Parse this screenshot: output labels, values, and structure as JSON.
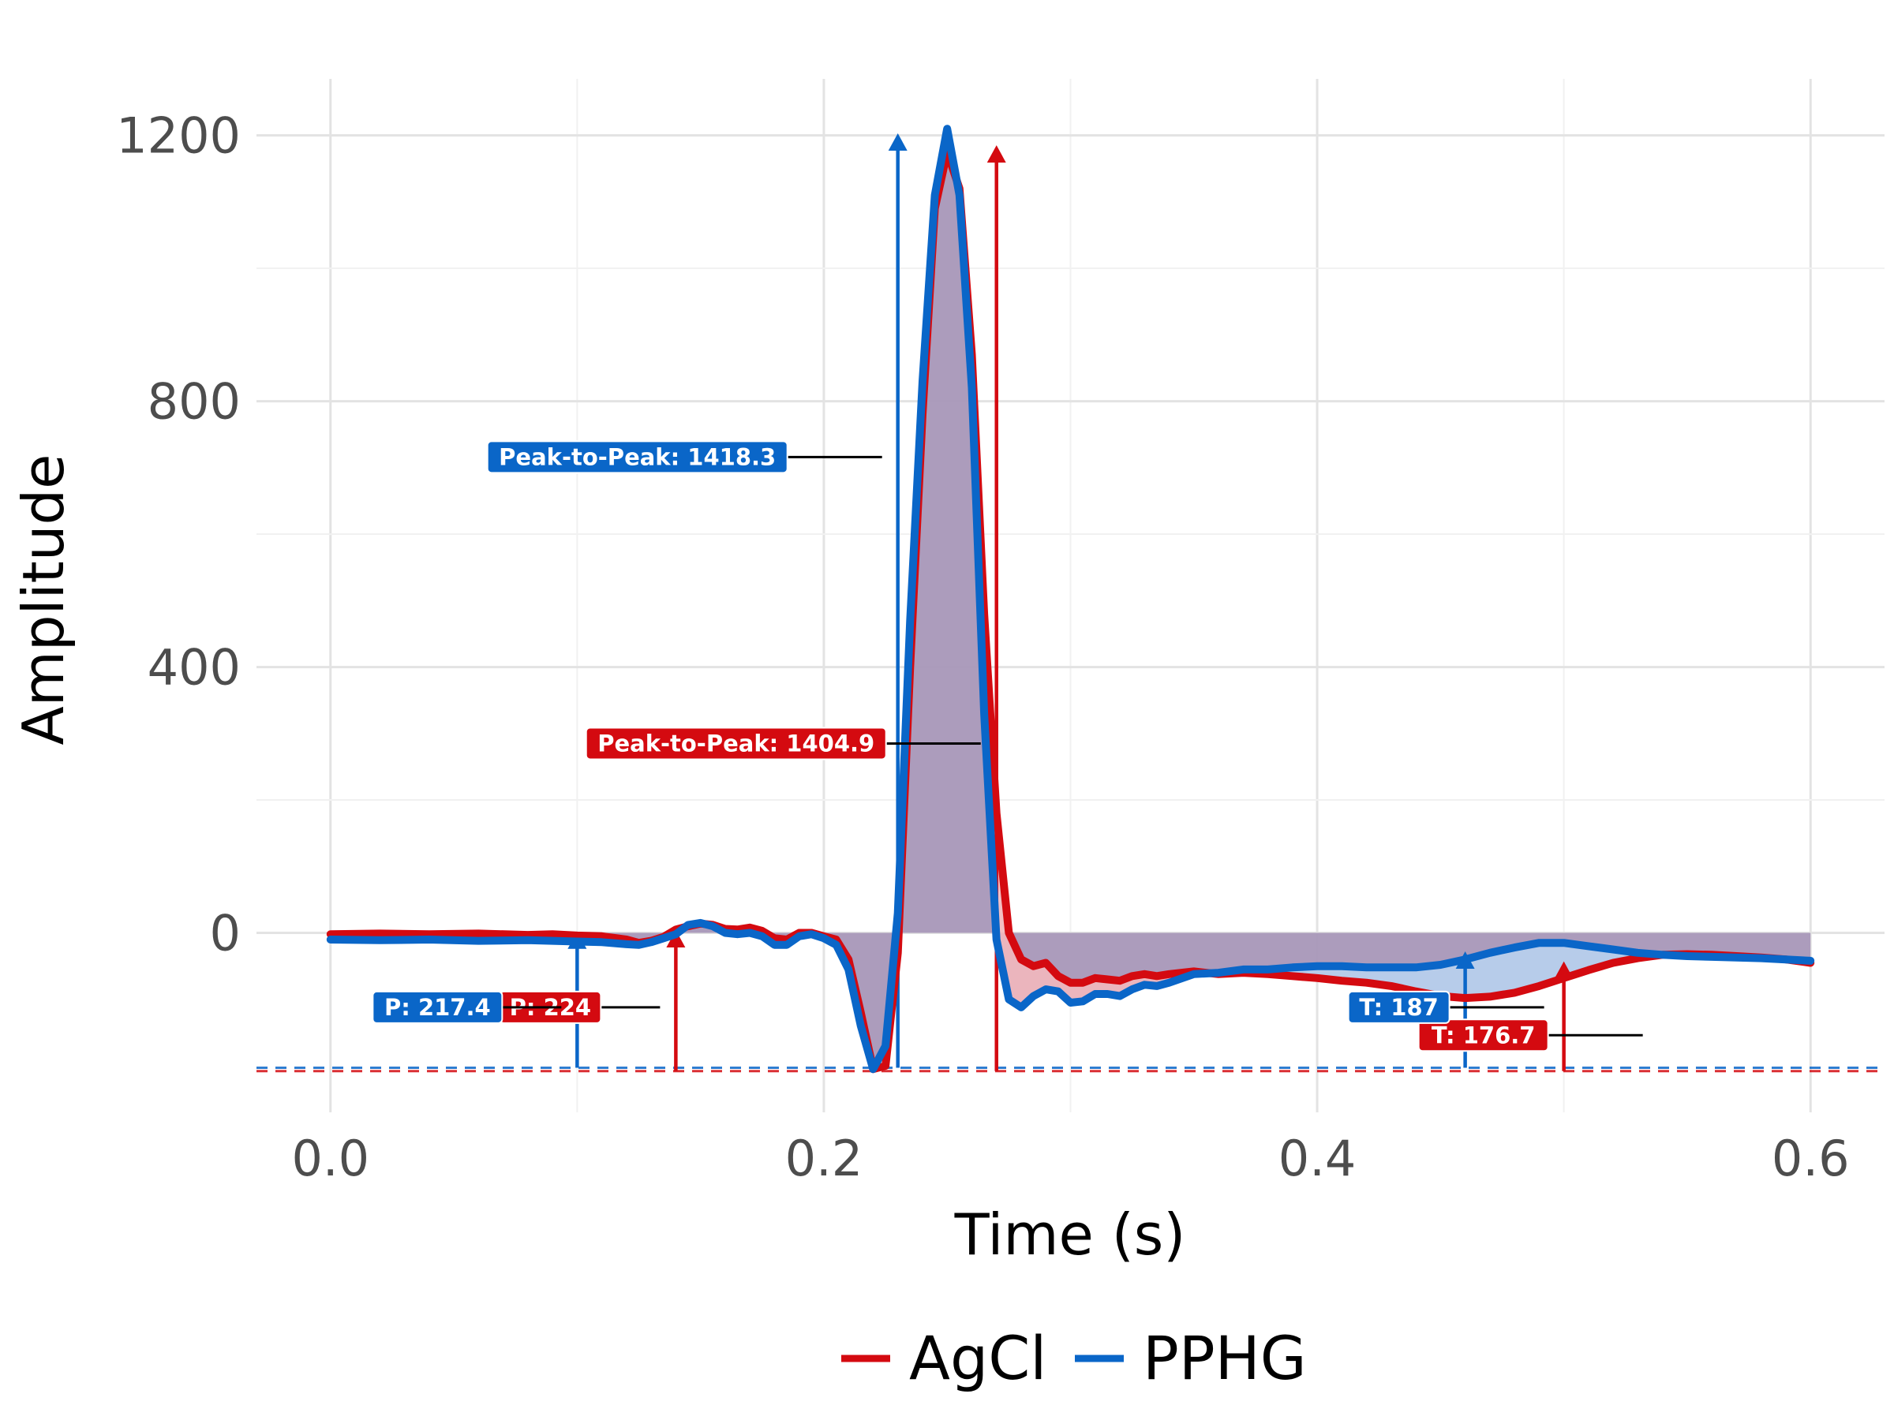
{
  "chart_data": {
    "type": "line",
    "xlabel": "Time (s)",
    "ylabel": "Amplitude",
    "xlim": [
      -0.03,
      0.63
    ],
    "ylim": [
      -270,
      1285
    ],
    "x_ticks": [
      0.0,
      0.2,
      0.4,
      0.6
    ],
    "x_tick_labels": [
      "0.0",
      "0.2",
      "0.4",
      "0.6"
    ],
    "y_ticks": [
      0,
      400,
      800,
      1200
    ],
    "y_tick_labels": [
      "0",
      "400",
      "800",
      "1200"
    ],
    "grid": true,
    "legend_position": "bottom",
    "shared_fill_color": "#a897b8",
    "series": [
      {
        "name": "AgCl",
        "color": "#d40a10",
        "fill_color": "#f2b8bd",
        "baseline": -208,
        "points": [
          [
            0.0,
            -2
          ],
          [
            0.02,
            -1
          ],
          [
            0.04,
            -2
          ],
          [
            0.06,
            -1
          ],
          [
            0.08,
            -3
          ],
          [
            0.09,
            -2
          ],
          [
            0.1,
            -4
          ],
          [
            0.11,
            -5
          ],
          [
            0.12,
            -10
          ],
          [
            0.125,
            -15
          ],
          [
            0.13,
            -12
          ],
          [
            0.135,
            -6
          ],
          [
            0.14,
            5
          ],
          [
            0.145,
            10
          ],
          [
            0.15,
            14
          ],
          [
            0.155,
            12
          ],
          [
            0.16,
            6
          ],
          [
            0.165,
            5
          ],
          [
            0.17,
            8
          ],
          [
            0.175,
            3
          ],
          [
            0.18,
            -8
          ],
          [
            0.185,
            -10
          ],
          [
            0.19,
            0
          ],
          [
            0.195,
            0
          ],
          [
            0.2,
            -5
          ],
          [
            0.205,
            -10
          ],
          [
            0.21,
            -40
          ],
          [
            0.215,
            -120
          ],
          [
            0.22,
            -205
          ],
          [
            0.225,
            -200
          ],
          [
            0.23,
            -30
          ],
          [
            0.235,
            400
          ],
          [
            0.24,
            780
          ],
          [
            0.245,
            1090
          ],
          [
            0.25,
            1175
          ],
          [
            0.255,
            1120
          ],
          [
            0.26,
            870
          ],
          [
            0.265,
            480
          ],
          [
            0.27,
            180
          ],
          [
            0.275,
            0
          ],
          [
            0.28,
            -40
          ],
          [
            0.285,
            -50
          ],
          [
            0.29,
            -45
          ],
          [
            0.295,
            -65
          ],
          [
            0.3,
            -75
          ],
          [
            0.305,
            -75
          ],
          [
            0.31,
            -68
          ],
          [
            0.315,
            -70
          ],
          [
            0.32,
            -72
          ],
          [
            0.325,
            -65
          ],
          [
            0.33,
            -62
          ],
          [
            0.335,
            -65
          ],
          [
            0.34,
            -62
          ],
          [
            0.35,
            -58
          ],
          [
            0.36,
            -62
          ],
          [
            0.37,
            -60
          ],
          [
            0.38,
            -62
          ],
          [
            0.39,
            -65
          ],
          [
            0.4,
            -68
          ],
          [
            0.41,
            -72
          ],
          [
            0.42,
            -75
          ],
          [
            0.43,
            -80
          ],
          [
            0.44,
            -88
          ],
          [
            0.45,
            -95
          ],
          [
            0.46,
            -98
          ],
          [
            0.47,
            -96
          ],
          [
            0.48,
            -90
          ],
          [
            0.49,
            -80
          ],
          [
            0.5,
            -68
          ],
          [
            0.51,
            -56
          ],
          [
            0.52,
            -45
          ],
          [
            0.53,
            -38
          ],
          [
            0.54,
            -33
          ],
          [
            0.55,
            -32
          ],
          [
            0.56,
            -33
          ],
          [
            0.57,
            -35
          ],
          [
            0.58,
            -37
          ],
          [
            0.59,
            -40
          ],
          [
            0.6,
            -45
          ]
        ],
        "annotations": [
          {
            "label": "P: 224",
            "x": 0.14,
            "y": 16
          },
          {
            "label": "Peak-to-Peak: 1404.9",
            "x": 0.27,
            "y": 1197
          },
          {
            "label": "T: 176.7",
            "x": 0.5,
            "y": -31
          }
        ]
      },
      {
        "name": "PPHG",
        "color": "#0a66c8",
        "fill_color": "#b8d2ee",
        "baseline": -203,
        "points": [
          [
            0.0,
            -10
          ],
          [
            0.02,
            -11
          ],
          [
            0.04,
            -10
          ],
          [
            0.06,
            -12
          ],
          [
            0.08,
            -11
          ],
          [
            0.09,
            -12
          ],
          [
            0.1,
            -13
          ],
          [
            0.11,
            -14
          ],
          [
            0.12,
            -17
          ],
          [
            0.125,
            -18
          ],
          [
            0.13,
            -14
          ],
          [
            0.135,
            -8
          ],
          [
            0.14,
            -2
          ],
          [
            0.145,
            12
          ],
          [
            0.15,
            15
          ],
          [
            0.155,
            10
          ],
          [
            0.16,
            0
          ],
          [
            0.165,
            -2
          ],
          [
            0.17,
            0
          ],
          [
            0.175,
            -5
          ],
          [
            0.18,
            -18
          ],
          [
            0.185,
            -18
          ],
          [
            0.19,
            -5
          ],
          [
            0.195,
            -2
          ],
          [
            0.2,
            -8
          ],
          [
            0.205,
            -18
          ],
          [
            0.21,
            -55
          ],
          [
            0.215,
            -140
          ],
          [
            0.22,
            -205
          ],
          [
            0.225,
            -170
          ],
          [
            0.23,
            30
          ],
          [
            0.235,
            470
          ],
          [
            0.24,
            830
          ],
          [
            0.245,
            1110
          ],
          [
            0.25,
            1210
          ],
          [
            0.255,
            1110
          ],
          [
            0.26,
            820
          ],
          [
            0.265,
            330
          ],
          [
            0.27,
            -10
          ],
          [
            0.275,
            -100
          ],
          [
            0.28,
            -112
          ],
          [
            0.285,
            -95
          ],
          [
            0.29,
            -85
          ],
          [
            0.295,
            -88
          ],
          [
            0.3,
            -105
          ],
          [
            0.305,
            -103
          ],
          [
            0.31,
            -92
          ],
          [
            0.315,
            -92
          ],
          [
            0.32,
            -95
          ],
          [
            0.325,
            -85
          ],
          [
            0.33,
            -78
          ],
          [
            0.335,
            -80
          ],
          [
            0.34,
            -75
          ],
          [
            0.35,
            -62
          ],
          [
            0.36,
            -60
          ],
          [
            0.37,
            -55
          ],
          [
            0.38,
            -55
          ],
          [
            0.39,
            -52
          ],
          [
            0.4,
            -50
          ],
          [
            0.41,
            -50
          ],
          [
            0.42,
            -52
          ],
          [
            0.43,
            -52
          ],
          [
            0.44,
            -52
          ],
          [
            0.45,
            -48
          ],
          [
            0.46,
            -40
          ],
          [
            0.47,
            -30
          ],
          [
            0.48,
            -22
          ],
          [
            0.49,
            -15
          ],
          [
            0.5,
            -15
          ],
          [
            0.51,
            -20
          ],
          [
            0.52,
            -25
          ],
          [
            0.53,
            -30
          ],
          [
            0.54,
            -33
          ],
          [
            0.55,
            -35
          ],
          [
            0.56,
            -36
          ],
          [
            0.57,
            -37
          ],
          [
            0.58,
            -38
          ],
          [
            0.59,
            -40
          ],
          [
            0.6,
            -42
          ]
        ],
        "annotations": [
          {
            "label": "P: 217.4",
            "x": 0.1,
            "y": 14
          },
          {
            "label": "Peak-to-Peak: 1418.3",
            "x": 0.23,
            "y": 1215
          },
          {
            "label": "T: 187",
            "x": 0.46,
            "y": -16
          }
        ]
      }
    ]
  }
}
